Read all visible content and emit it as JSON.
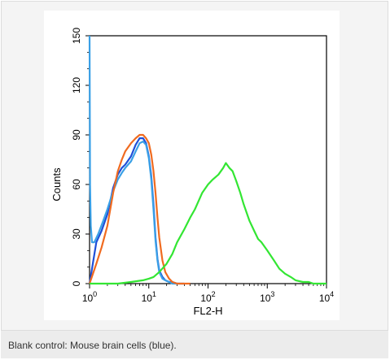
{
  "caption": "Blank control: Mouse brain cells (blue).",
  "chart_data": {
    "type": "line",
    "title": "",
    "xlabel": "FL2-H",
    "ylabel": "Counts",
    "x_scale": "log",
    "xlim": [
      1,
      10000
    ],
    "ylim": [
      0,
      150
    ],
    "x_ticks": [
      {
        "value": 1,
        "base": "10",
        "exp": "0"
      },
      {
        "value": 10,
        "base": "10",
        "exp": "1"
      },
      {
        "value": 100,
        "base": "10",
        "exp": "2"
      },
      {
        "value": 1000,
        "base": "10",
        "exp": "3"
      },
      {
        "value": 10000,
        "base": "10",
        "exp": "4"
      }
    ],
    "y_ticks": [
      "0",
      "30",
      "60",
      "90",
      "120",
      "150"
    ],
    "y_tick_values": [
      0,
      30,
      60,
      90,
      120,
      150
    ],
    "grid": false,
    "legend": "none",
    "series": [
      {
        "color": "#1f4fd8",
        "x": [
          1,
          1.3,
          1.6,
          2,
          2.5,
          3,
          3.5,
          4,
          5,
          6,
          7,
          8,
          9,
          10,
          11,
          12,
          13,
          14,
          15,
          17,
          19,
          22,
          25,
          30,
          40
        ],
        "y": [
          0,
          25,
          32,
          42,
          58,
          66,
          70,
          72,
          77,
          84,
          88,
          88,
          85,
          77,
          65,
          48,
          28,
          15,
          8,
          4,
          2,
          1,
          1,
          0,
          0
        ]
      },
      {
        "color": "#3aa0e6",
        "x": [
          1,
          1.02,
          1.05,
          1.1,
          1.2,
          1.4,
          1.7,
          2,
          2.5,
          3,
          3.5,
          4,
          5,
          6,
          7,
          8,
          9,
          10,
          11,
          12,
          13,
          14,
          15,
          17,
          19,
          22,
          25,
          30
        ],
        "y": [
          150,
          60,
          35,
          25,
          25,
          30,
          38,
          45,
          56,
          63,
          67,
          70,
          74,
          80,
          85,
          86,
          84,
          76,
          63,
          45,
          26,
          14,
          7,
          3,
          2,
          1,
          0,
          0
        ]
      },
      {
        "color": "#f06b20",
        "x": [
          1,
          1.3,
          1.6,
          2,
          2.5,
          3,
          3.5,
          4,
          5,
          6,
          7,
          8,
          9,
          10,
          11,
          12,
          13,
          14,
          15,
          17,
          19,
          22,
          25,
          30,
          40,
          50
        ],
        "y": [
          0,
          12,
          22,
          35,
          55,
          68,
          75,
          80,
          85,
          88,
          90,
          90,
          88,
          85,
          78,
          68,
          55,
          40,
          28,
          14,
          7,
          3,
          1,
          0,
          0,
          0
        ]
      },
      {
        "color": "#33e633",
        "x": [
          1,
          3,
          5,
          8,
          10,
          12,
          15,
          20,
          25,
          30,
          40,
          50,
          60,
          80,
          100,
          120,
          150,
          180,
          200,
          230,
          260,
          300,
          350,
          400,
          500,
          600,
          700,
          800,
          1000,
          1300,
          1600,
          2000,
          2500,
          3000,
          4000,
          5000,
          6000,
          8000,
          10000
        ],
        "y": [
          0,
          0,
          1,
          2,
          3,
          4,
          7,
          12,
          18,
          25,
          33,
          40,
          45,
          55,
          60,
          63,
          66,
          70,
          73,
          70,
          68,
          62,
          55,
          48,
          38,
          32,
          27,
          25,
          20,
          14,
          9,
          6,
          4,
          2,
          1,
          1,
          0,
          0,
          0
        ]
      }
    ]
  }
}
